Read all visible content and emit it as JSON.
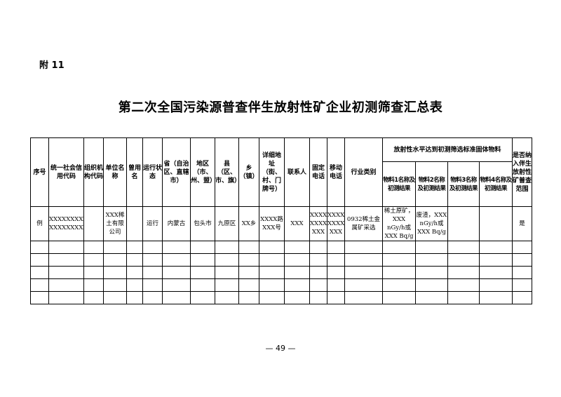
{
  "annex": "附 11",
  "title": "第二次全国污染源普查伴生放射性矿企业初测筛查汇总表",
  "table": {
    "headers": [
      "序号",
      "统一社会信用代码",
      "组织机构代码",
      "单位名称",
      "曾用名",
      "运行状态",
      "省（自治区、直辖市）",
      "地区（市、州、盟）",
      "县（区、市、旗）",
      "乡（镇）",
      "详细地址（街、村、门牌号）",
      "联系人",
      "固定电话",
      "移动电话",
      "行业类别",
      "放射性水平达到初测筛选标准固体物料",
      "是否纳入伴生放射性矿普查范围"
    ],
    "sub_headers": [
      "物料1名称及初测结果",
      "物料2名称及初测结果",
      "物料3名称及初测结果",
      "物料4名称及初测结果"
    ],
    "example_row": [
      "例",
      "XXXXXXXXX XXXXXXXXX",
      "",
      "XXX稀土有限公司",
      "",
      "运行",
      "内蒙古",
      "包头市",
      "九原区",
      "XX乡",
      "XXXX路XXX号",
      "XXX",
      "XXXX XXXX XXX",
      "XXXX XXXX XXX",
      "0932稀土金属矿采选",
      "稀土原矿，XXX nGy/h或XXX Bq/g",
      "废渣，XXX nGy/h或XXX Bq/g",
      "",
      "",
      "是"
    ],
    "empty_rows": 5
  },
  "page_number": "— 49 —"
}
